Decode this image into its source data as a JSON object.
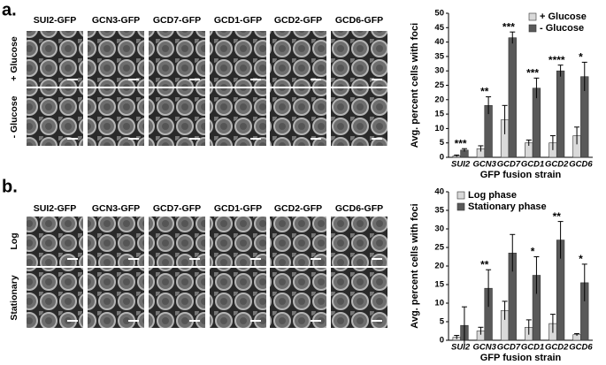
{
  "panels": [
    {
      "label": "a.",
      "columns": [
        "SUI2-GFP",
        "GCN3-GFP",
        "GCD7-GFP",
        "GCD1-GFP",
        "GCD2-GFP",
        "GCD6-GFP"
      ],
      "rows": [
        "+ Glucose",
        "- Glucose"
      ]
    },
    {
      "label": "b.",
      "columns": [
        "SUI2-GFP",
        "GCN3-GFP",
        "GCD7-GFP",
        "GCD1-GFP",
        "GCD2-GFP",
        "GCD6-GFP"
      ],
      "rows": [
        "Log",
        "Stationary"
      ]
    }
  ],
  "chart_data": [
    {
      "type": "bar",
      "ylabel": "Avg. percent cells with foci",
      "xlabel": "GFP fusion strain",
      "categories": [
        "SUI2",
        "GCN3",
        "GCD7",
        "GCD1",
        "GCD2",
        "GCD6"
      ],
      "series": [
        {
          "name": "+ Glucose",
          "color": "#d9d9d9",
          "values": [
            0.5,
            3,
            13,
            5,
            5,
            7.5
          ],
          "errors": [
            0.3,
            1,
            5,
            1,
            2.5,
            3
          ]
        },
        {
          "name": "- Glucose",
          "color": "#595959",
          "values": [
            2.5,
            18,
            41.5,
            24,
            30,
            28
          ],
          "errors": [
            0.5,
            3,
            2,
            3.5,
            2,
            5
          ]
        }
      ],
      "annotations": [
        "***",
        "**",
        "***",
        "***",
        "****",
        "*"
      ],
      "ylim": [
        0,
        50
      ],
      "yticks": [
        0,
        5,
        10,
        15,
        20,
        25,
        30,
        35,
        40,
        45,
        50
      ],
      "legend": "top-right"
    },
    {
      "type": "bar",
      "ylabel": "Avg. percent cells with foci",
      "xlabel": "GFP fusion strain",
      "categories": [
        "SUI2",
        "GCN3",
        "GCD7",
        "GCD1",
        "GCD2",
        "GCD6"
      ],
      "series": [
        {
          "name": "Log phase",
          "color": "#d9d9d9",
          "values": [
            0.8,
            2.5,
            8,
            3.5,
            4.5,
            1.5
          ],
          "errors": [
            0.5,
            1,
            2.5,
            2,
            2.5,
            0.3
          ]
        },
        {
          "name": "Stationary phase",
          "color": "#595959",
          "values": [
            4,
            14,
            23.5,
            17.5,
            27,
            15.5
          ],
          "errors": [
            5,
            5,
            5,
            5,
            5,
            5
          ]
        }
      ],
      "annotations": [
        null,
        "**",
        null,
        "*",
        "**",
        "*"
      ],
      "ylim": [
        0,
        40
      ],
      "yticks": [
        0,
        5,
        10,
        15,
        20,
        25,
        30,
        35,
        40
      ],
      "legend": "top-left"
    }
  ]
}
